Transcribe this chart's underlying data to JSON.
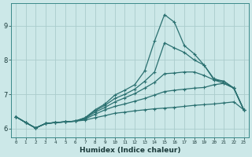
{
  "title": "",
  "xlabel": "Humidex (Indice chaleur)",
  "bg_color": "#cce8e8",
  "grid_color": "#aacccc",
  "line_color": "#2a7070",
  "xlim": [
    -0.5,
    23.5
  ],
  "ylim": [
    5.75,
    9.65
  ],
  "x": [
    0,
    1,
    2,
    3,
    4,
    5,
    6,
    7,
    8,
    9,
    10,
    11,
    12,
    13,
    14,
    15,
    16,
    17,
    18,
    19,
    20,
    21,
    22,
    23
  ],
  "series": [
    [
      6.35,
      6.18,
      6.02,
      6.15,
      6.18,
      6.2,
      6.22,
      6.25,
      6.32,
      6.38,
      6.45,
      6.48,
      6.52,
      6.55,
      6.58,
      6.6,
      6.62,
      6.65,
      6.68,
      6.7,
      6.72,
      6.75,
      6.78,
      6.55
    ],
    [
      6.35,
      6.18,
      6.02,
      6.15,
      6.18,
      6.2,
      6.22,
      6.28,
      6.42,
      6.55,
      6.65,
      6.72,
      6.8,
      6.88,
      6.98,
      7.08,
      7.12,
      7.15,
      7.18,
      7.2,
      7.28,
      7.32,
      7.18,
      6.55
    ],
    [
      6.35,
      6.18,
      6.02,
      6.15,
      6.18,
      6.2,
      6.22,
      6.3,
      6.48,
      6.62,
      6.78,
      6.9,
      7.02,
      7.18,
      7.35,
      7.6,
      7.62,
      7.65,
      7.65,
      7.55,
      7.42,
      7.38,
      7.18,
      6.55
    ],
    [
      6.35,
      6.18,
      6.02,
      6.15,
      6.18,
      6.2,
      6.22,
      6.32,
      6.52,
      6.68,
      6.88,
      7.0,
      7.15,
      7.38,
      7.65,
      8.5,
      8.35,
      8.22,
      8.0,
      7.85,
      7.45,
      7.38,
      7.18,
      6.55
    ],
    [
      6.35,
      6.18,
      6.02,
      6.15,
      6.18,
      6.2,
      6.22,
      6.32,
      6.55,
      6.72,
      6.98,
      7.12,
      7.28,
      7.68,
      8.55,
      9.32,
      9.1,
      8.42,
      8.18,
      7.85,
      7.42,
      7.32,
      7.18,
      6.55
    ]
  ]
}
